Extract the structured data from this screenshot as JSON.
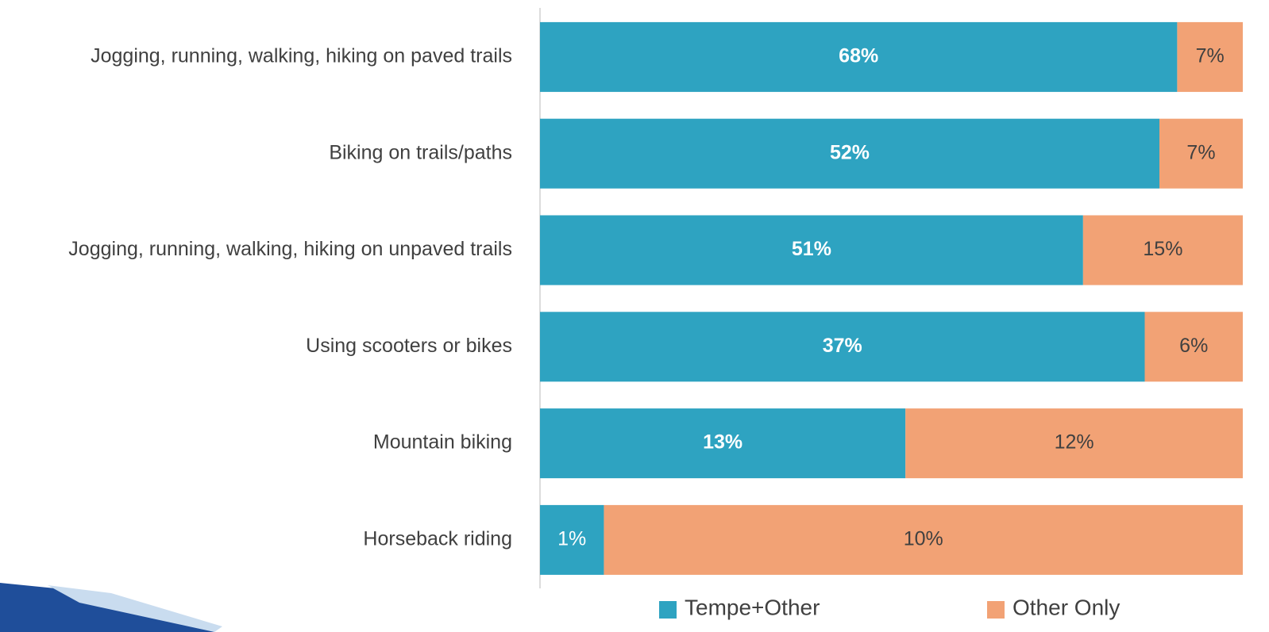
{
  "chart_data": {
    "type": "bar",
    "orientation": "horizontal",
    "stacking": "percent",
    "categories": [
      "Jogging, running, walking, hiking on paved trails",
      "Biking on trails/paths",
      "Jogging, running, walking, hiking on unpaved trails",
      "Using scooters or bikes",
      "Mountain biking",
      "Horseback riding"
    ],
    "series": [
      {
        "name": "Tempe+Other",
        "color": "#2ea3c1",
        "values": [
          68,
          52,
          51,
          37,
          13,
          1
        ],
        "value_labels": [
          "68%",
          "52%",
          "51%",
          "37%",
          "13%",
          "1%"
        ]
      },
      {
        "name": "Other Only",
        "color": "#f2a275",
        "values": [
          7,
          7,
          15,
          6,
          12,
          10
        ],
        "value_labels": [
          "7%",
          "7%",
          "15%",
          "6%",
          "12%",
          "10%"
        ]
      }
    ],
    "legend": "bottom"
  }
}
